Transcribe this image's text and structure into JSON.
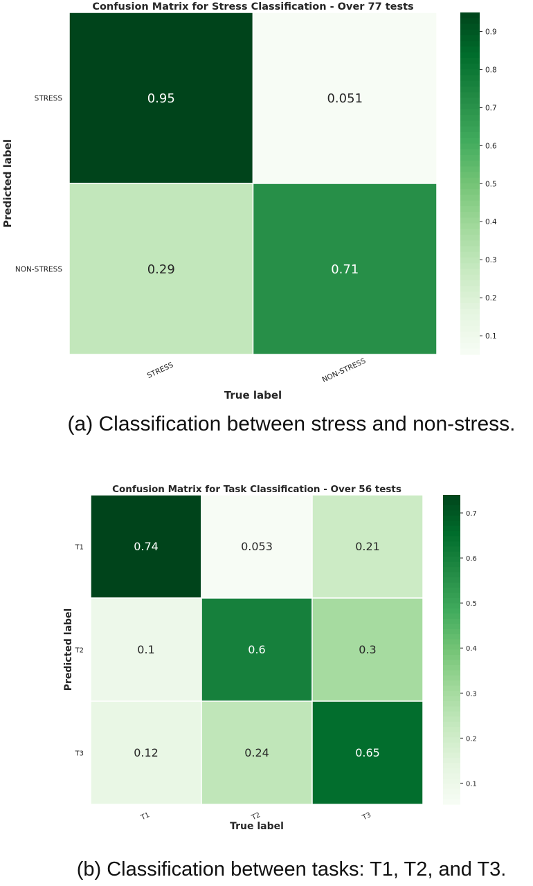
{
  "captions": {
    "a": "(a) Classification between stress and non-stress.",
    "b": "(b) Classification between tasks: T1, T2, and T3."
  },
  "colors": {
    "low": "#f7fcf5",
    "high": "#00441b"
  },
  "chart_data": [
    {
      "type": "heatmap",
      "title": "Confusion Matrix for Stress Classification - Over 77 tests",
      "xlabel": "True label",
      "ylabel": "Predicted label",
      "x_categories": [
        "STRESS",
        "NON-STRESS"
      ],
      "y_categories": [
        "STRESS",
        "NON-STRESS"
      ],
      "values": [
        [
          0.95,
          0.051
        ],
        [
          0.29,
          0.71
        ]
      ],
      "value_labels": [
        [
          "0.95",
          "0.051"
        ],
        [
          "0.29",
          "0.71"
        ]
      ],
      "colorbar": {
        "range": [
          0.051,
          0.95
        ],
        "ticks": [
          0.1,
          0.2,
          0.3,
          0.4,
          0.5,
          0.6,
          0.7,
          0.8,
          0.9
        ]
      },
      "colormap": "Greens"
    },
    {
      "type": "heatmap",
      "title": "Confusion Matrix for Task Classification - Over 56 tests",
      "xlabel": "True label",
      "ylabel": "Predicted label",
      "x_categories": [
        "T1",
        "T2",
        "T3"
      ],
      "y_categories": [
        "T1",
        "T2",
        "T3"
      ],
      "values": [
        [
          0.74,
          0.053,
          0.21
        ],
        [
          0.1,
          0.6,
          0.3
        ],
        [
          0.12,
          0.24,
          0.65
        ]
      ],
      "value_labels": [
        [
          "0.74",
          "0.053",
          "0.21"
        ],
        [
          "0.1",
          "0.6",
          "0.3"
        ],
        [
          "0.12",
          "0.24",
          "0.65"
        ]
      ],
      "colorbar": {
        "range": [
          0.053,
          0.74
        ],
        "ticks": [
          0.1,
          0.2,
          0.3,
          0.4,
          0.5,
          0.6,
          0.7
        ]
      },
      "colormap": "Greens"
    }
  ]
}
